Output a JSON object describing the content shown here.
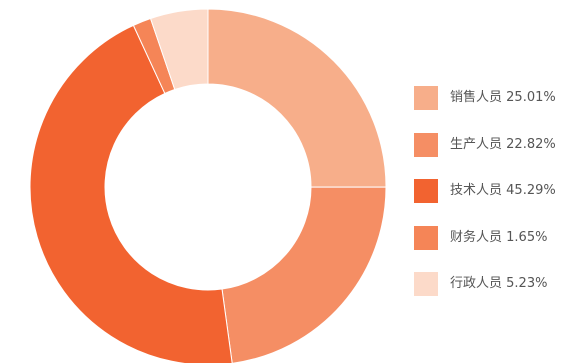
{
  "chart_data": {
    "type": "pie",
    "title": "",
    "donut": true,
    "slices": [
      {
        "label": "销售人员",
        "value": 25.01,
        "display": "25.01%",
        "color": "#F7AE8A"
      },
      {
        "label": "生产人员",
        "value": 22.82,
        "display": "22.82%",
        "color": "#F58E64"
      },
      {
        "label": "技术人员",
        "value": 45.29,
        "display": "45.29%",
        "color": "#F26330"
      },
      {
        "label": "财务人员",
        "value": 1.65,
        "display": "1.65%",
        "color": "#F58557"
      },
      {
        "label": "行政人员",
        "value": 5.23,
        "display": "5.23%",
        "color": "#FCDAC9"
      }
    ],
    "legend": {
      "position": "right"
    }
  }
}
